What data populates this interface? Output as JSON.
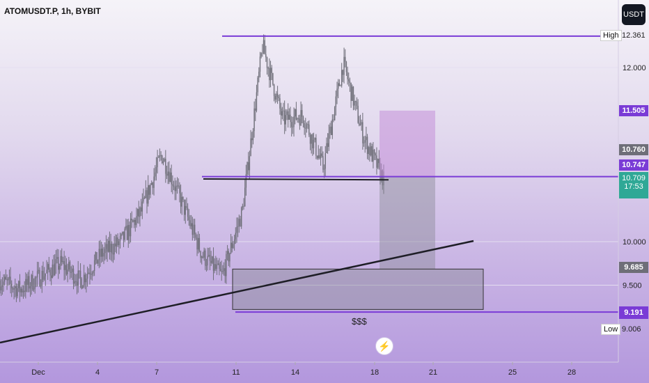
{
  "header": {
    "symbol_title": "ATOMUSDT.P, 1h, BYBIT",
    "currency_button": "USDT"
  },
  "colors": {
    "purple_line": "#7a3bd6",
    "candle": "#6e6e78",
    "trendline": "#1e1e26",
    "price_green": "#2fa896"
  },
  "chart_data": {
    "type": "candlestick",
    "x_ticks": [
      "Dec",
      "4",
      "7",
      "11",
      "14",
      "18",
      "21",
      "25",
      "28"
    ],
    "y_ticks": [
      "12.000",
      "10.000",
      "9.500"
    ],
    "ylim": [
      8.7,
      12.55
    ],
    "price_path": [
      [
        "Dec 1",
        9.55
      ],
      [
        "Dec 2",
        9.45
      ],
      [
        "Dec 3",
        9.6
      ],
      [
        "Dec 4",
        9.75
      ],
      [
        "Dec 5",
        9.55
      ],
      [
        "Dec 6",
        9.85
      ],
      [
        "Dec 7",
        10.0
      ],
      [
        "Dec 8",
        10.35
      ],
      [
        "Dec 9",
        11.0
      ],
      [
        "Dec 10",
        10.45
      ],
      [
        "Dec 11",
        9.85
      ],
      [
        "Dec 12",
        9.6
      ],
      [
        "Dec 13",
        10.35
      ],
      [
        "Dec 13b",
        12.25
      ],
      [
        "Dec 14",
        11.4
      ],
      [
        "Dec 15",
        11.45
      ],
      [
        "Dec 16",
        10.85
      ],
      [
        "Dec 17",
        12.05
      ],
      [
        "Dec 18",
        11.2
      ],
      [
        "Dec 18b",
        10.71
      ]
    ],
    "levels": {
      "high": {
        "label": "High",
        "value": "12.361"
      },
      "target": {
        "value": "11.505"
      },
      "level_a": {
        "value": "10.760"
      },
      "level_b": {
        "value": "10.747"
      },
      "last": {
        "value": "10.709",
        "countdown": "17:53"
      },
      "zone_top": {
        "value": "9.685"
      },
      "sss_line": {
        "value": "9.191"
      },
      "low": {
        "label": "Low",
        "value": "9.006"
      }
    },
    "annotations": {
      "liquidity_label": "$$$"
    }
  }
}
